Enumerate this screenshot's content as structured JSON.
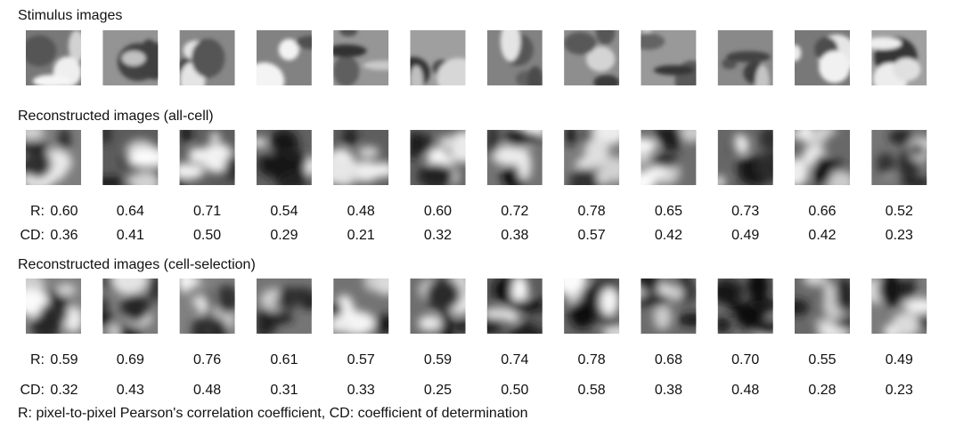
{
  "sections": [
    {
      "title": "Stimulus images"
    },
    {
      "title": "Reconstructed images (all-cell)",
      "metrics": [
        {
          "label": "R:",
          "values": [
            "0.60",
            "0.64",
            "0.71",
            "0.54",
            "0.48",
            "0.60",
            "0.72",
            "0.78",
            "0.65",
            "0.73",
            "0.66",
            "0.52"
          ]
        },
        {
          "label": "CD:",
          "values": [
            "0.36",
            "0.41",
            "0.50",
            "0.29",
            "0.21",
            "0.32",
            "0.38",
            "0.57",
            "0.42",
            "0.49",
            "0.42",
            "0.23"
          ]
        }
      ]
    },
    {
      "title": "Reconstructed images (cell-selection)",
      "metrics": [
        {
          "label": "R:",
          "values": [
            "0.59",
            "0.69",
            "0.76",
            "0.61",
            "0.57",
            "0.59",
            "0.74",
            "0.78",
            "0.68",
            "0.70",
            "0.55",
            "0.49"
          ]
        },
        {
          "label": "CD:",
          "values": [
            "0.32",
            "0.43",
            "0.48",
            "0.31",
            "0.33",
            "0.25",
            "0.50",
            "0.58",
            "0.38",
            "0.48",
            "0.28",
            "0.23"
          ]
        }
      ]
    }
  ],
  "footnote": "R: pixel-to-pixel Pearson's correlation coefficient, CD: coefficient of determination"
}
